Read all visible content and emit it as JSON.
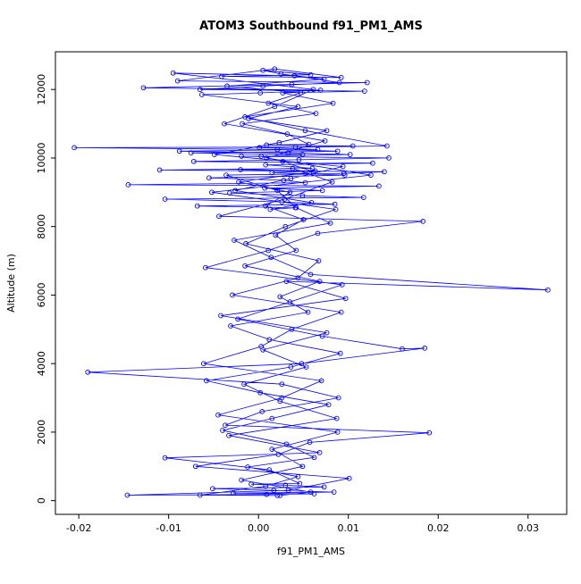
{
  "title": "ATOM3 Southbound f91_PM1_AMS",
  "chart_data": {
    "type": "line",
    "title": "ATOM3 Southbound f91_PM1_AMS",
    "xlabel": "f91_PM1_AMS",
    "ylabel": "Altitude (m)",
    "series_color": "#0000ff",
    "marker": "open-circle",
    "grid": false,
    "legend": false,
    "xlim": [
      -0.0226,
      0.0343
    ],
    "ylim": [
      -400,
      13100
    ],
    "xticks": [
      -0.02,
      -0.01,
      0,
      0.01,
      0.02,
      0.03
    ],
    "xtick_labels": [
      "-0.02",
      "-0.01",
      "0.00",
      "0.01",
      "0.02",
      "0.03"
    ],
    "yticks": [
      0,
      2000,
      4000,
      6000,
      8000,
      10000,
      12000
    ],
    "ytick_labels": [
      "0",
      "2000",
      "4000",
      "6000",
      "8000",
      "10000",
      "12000"
    ],
    "points": [
      [
        0.0021,
        150
      ],
      [
        -0.0065,
        160
      ],
      [
        0.0008,
        420
      ],
      [
        0.0044,
        700
      ],
      [
        -0.0012,
        980
      ],
      [
        0.0062,
        1260
      ],
      [
        0.0031,
        1650
      ],
      [
        -0.004,
        2050
      ],
      [
        0.0015,
        2400
      ],
      [
        0.0078,
        2800
      ],
      [
        0.0002,
        3150
      ],
      [
        -0.0058,
        3500
      ],
      [
        0.0036,
        3900
      ],
      [
        0.0091,
        4300
      ],
      [
        0.0012,
        4700
      ],
      [
        -0.0031,
        5100
      ],
      [
        0.0055,
        5500
      ],
      [
        0.0024,
        5950
      ],
      [
        0.0068,
        6400
      ],
      [
        -0.0015,
        6850
      ],
      [
        0.0042,
        7300
      ],
      [
        0.0019,
        7750
      ],
      [
        0.005,
        8200
      ],
      [
        0.0008,
        8600
      ],
      [
        0.0035,
        9000
      ],
      [
        -0.0022,
        9300
      ],
      [
        0.0061,
        9600
      ],
      [
        0.0027,
        9900
      ],
      [
        0.0003,
        10050
      ],
      [
        0.0049,
        10100
      ],
      [
        -0.0075,
        10150
      ],
      [
        0.0088,
        10200
      ],
      [
        0.0021,
        10250
      ],
      [
        -0.0205,
        10300
      ],
      [
        0.0041,
        10320
      ],
      [
        0.0105,
        10350
      ],
      [
        0.0009,
        10380
      ],
      [
        0.0056,
        10400
      ],
      [
        0.0032,
        10700
      ],
      [
        -0.0018,
        11000
      ],
      [
        0.0064,
        11300
      ],
      [
        0.0011,
        11600
      ],
      [
        0.0047,
        11900
      ],
      [
        -0.0035,
        12100
      ],
      [
        0.0073,
        12300
      ],
      [
        0.0025,
        12450
      ],
      [
        0.0005,
        12560
      ],
      [
        0.0058,
        12430
      ],
      [
        -0.0041,
        12380
      ],
      [
        0.0092,
        12350
      ],
      [
        0.0018,
        12600
      ],
      [
        -0.009,
        12250
      ],
      [
        0.0121,
        12200
      ],
      [
        0.0037,
        12150
      ],
      [
        -0.0128,
        12050
      ],
      [
        0.0069,
        11980
      ],
      [
        0.0002,
        11900
      ],
      [
        -0.0063,
        11850
      ],
      [
        0.0044,
        11500
      ],
      [
        -0.0011,
        11150
      ],
      [
        0.0076,
        10800
      ],
      [
        0.0023,
        10450
      ],
      [
        -0.0049,
        10100
      ],
      [
        0.0094,
        9750
      ],
      [
        0.0036,
        9400
      ],
      [
        -0.0026,
        9050
      ],
      [
        0.0059,
        8700
      ],
      [
        0.0013,
        8500
      ],
      [
        0.0041,
        8550
      ],
      [
        -0.0068,
        8600
      ],
      [
        0.0085,
        8650
      ],
      [
        0.0026,
        8720
      ],
      [
        -0.0104,
        8800
      ],
      [
        0.0117,
        8850
      ],
      [
        0.0049,
        8900
      ],
      [
        -0.0032,
        8980
      ],
      [
        0.0071,
        9050
      ],
      [
        0.0007,
        9120
      ],
      [
        0.0134,
        9180
      ],
      [
        -0.0145,
        9220
      ],
      [
        0.0052,
        9280
      ],
      [
        0.0028,
        9350
      ],
      [
        -0.0055,
        9420
      ],
      [
        0.0096,
        9500
      ],
      [
        0.0015,
        9570
      ],
      [
        0.0063,
        9620
      ],
      [
        -0.002,
        9660
      ],
      [
        0.0038,
        9700
      ],
      [
        0.0082,
        9300
      ],
      [
        0.0029,
        8800
      ],
      [
        -0.0044,
        8300
      ],
      [
        0.0183,
        8150
      ],
      [
        0.0066,
        7800
      ],
      [
        0.0011,
        7300
      ],
      [
        -0.0059,
        6800
      ],
      [
        0.0093,
        6300
      ],
      [
        0.0035,
        5800
      ],
      [
        -0.0023,
        5300
      ],
      [
        0.0071,
        4800
      ],
      [
        0.016,
        4430
      ],
      [
        0.0185,
        4450
      ],
      [
        0.0048,
        4000
      ],
      [
        -0.019,
        3750
      ],
      [
        0.0026,
        3400
      ],
      [
        0.0089,
        3000
      ],
      [
        0.0004,
        2600
      ],
      [
        -0.0037,
        2200
      ],
      [
        0.019,
        1980
      ],
      [
        0.0057,
        1700
      ],
      [
        0.0022,
        1350
      ],
      [
        -0.007,
        1000
      ],
      [
        0.0101,
        650
      ],
      [
        0.0033,
        300
      ],
      [
        -0.0146,
        160
      ],
      [
        0.0009,
        180
      ],
      [
        0.0062,
        200
      ],
      [
        -0.0028,
        220
      ],
      [
        0.0084,
        250
      ],
      [
        0.0017,
        300
      ],
      [
        -0.0051,
        350
      ],
      [
        0.0073,
        400
      ],
      [
        0.003,
        450
      ],
      [
        -0.0008,
        480
      ],
      [
        0.0046,
        500
      ],
      [
        0.0012,
        900
      ],
      [
        -0.0104,
        1250
      ],
      [
        0.0068,
        1400
      ],
      [
        -0.0033,
        1900
      ],
      [
        0.0087,
        2400
      ],
      [
        0.0024,
        2900
      ],
      [
        -0.0016,
        3400
      ],
      [
        0.0053,
        3900
      ],
      [
        0.0005,
        4400
      ],
      [
        0.0076,
        4900
      ],
      [
        -0.0042,
        5400
      ],
      [
        0.0097,
        5900
      ],
      [
        0.0031,
        6400
      ],
      [
        0.0322,
        6150
      ],
      [
        0.0058,
        6600
      ],
      [
        0.0014,
        7100
      ],
      [
        -0.0027,
        7600
      ],
      [
        0.008,
        8100
      ],
      [
        0.0042,
        8550
      ],
      [
        0.0021,
        9050
      ],
      [
        -0.0036,
        9500
      ],
      [
        0.0095,
        9550
      ],
      [
        0.014,
        9600
      ],
      [
        -0.011,
        9650
      ],
      [
        0.006,
        9700
      ],
      [
        0.0008,
        9800
      ],
      [
        0.0127,
        9850
      ],
      [
        -0.0072,
        9900
      ],
      [
        0.0045,
        9950
      ],
      [
        0.0145,
        10000
      ],
      [
        -0.0019,
        10050
      ],
      [
        0.0102,
        10100
      ],
      [
        0.0033,
        10150
      ],
      [
        -0.0088,
        10200
      ],
      [
        0.0066,
        10250
      ],
      [
        0.0001,
        10300
      ],
      [
        0.0143,
        10350
      ],
      [
        0.0052,
        10800
      ],
      [
        -0.0015,
        11200
      ],
      [
        0.0083,
        11600
      ],
      [
        0.0027,
        11900
      ],
      [
        0.0118,
        11950
      ],
      [
        -0.0065,
        12000
      ],
      [
        0.0005,
        12100
      ],
      [
        0.009,
        12200
      ],
      [
        0.004,
        12400
      ],
      [
        -0.0095,
        12480
      ],
      [
        0.0061,
        12000
      ],
      [
        0.0018,
        11500
      ],
      [
        -0.0038,
        11000
      ],
      [
        0.0074,
        10500
      ],
      [
        0.0009,
        10000
      ],
      [
        0.0125,
        9500
      ],
      [
        -0.0052,
        9000
      ],
      [
        0.0086,
        8500
      ],
      [
        0.003,
        8000
      ],
      [
        -0.0014,
        7500
      ],
      [
        0.0067,
        7000
      ],
      [
        0.0044,
        6500
      ],
      [
        -0.0029,
        6000
      ],
      [
        0.0092,
        5500
      ],
      [
        0.0037,
        5000
      ],
      [
        0.0003,
        4500
      ],
      [
        -0.0061,
        4000
      ],
      [
        0.007,
        3500
      ],
      [
        0.0026,
        3000
      ],
      [
        -0.0045,
        2500
      ],
      [
        0.0088,
        2000
      ],
      [
        0.0015,
        1500
      ],
      [
        0.0049,
        1000
      ],
      [
        -0.0019,
        600
      ],
      [
        0.0058,
        250
      ],
      [
        0.0024,
        150
      ]
    ]
  }
}
